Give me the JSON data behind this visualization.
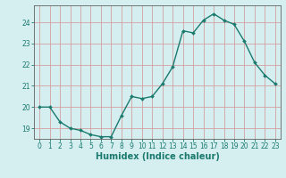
{
  "x": [
    0,
    1,
    2,
    3,
    4,
    5,
    6,
    7,
    8,
    9,
    10,
    11,
    12,
    13,
    14,
    15,
    16,
    17,
    18,
    19,
    20,
    21,
    22,
    23
  ],
  "y": [
    20.0,
    20.0,
    19.3,
    19.0,
    18.9,
    18.7,
    18.6,
    18.6,
    19.6,
    20.5,
    20.4,
    20.5,
    21.1,
    21.9,
    23.6,
    23.5,
    24.1,
    24.4,
    24.1,
    23.9,
    23.1,
    22.1,
    21.5,
    21.1
  ],
  "line_color": "#1a7a6e",
  "marker": "D",
  "marker_size": 2.0,
  "linewidth": 1.0,
  "bg_color": "#d5eef0",
  "grid_color": "#c0c0c0",
  "axis_color": "#606060",
  "tick_color": "#1a7a6e",
  "xlabel": "Humidex (Indice chaleur)",
  "xlabel_fontsize": 7,
  "xlim": [
    -0.5,
    23.5
  ],
  "ylim": [
    18.5,
    24.8
  ],
  "yticks": [
    19,
    20,
    21,
    22,
    23,
    24
  ],
  "xticks": [
    0,
    1,
    2,
    3,
    4,
    5,
    6,
    7,
    8,
    9,
    10,
    11,
    12,
    13,
    14,
    15,
    16,
    17,
    18,
    19,
    20,
    21,
    22,
    23
  ],
  "tick_fontsize": 5.5
}
